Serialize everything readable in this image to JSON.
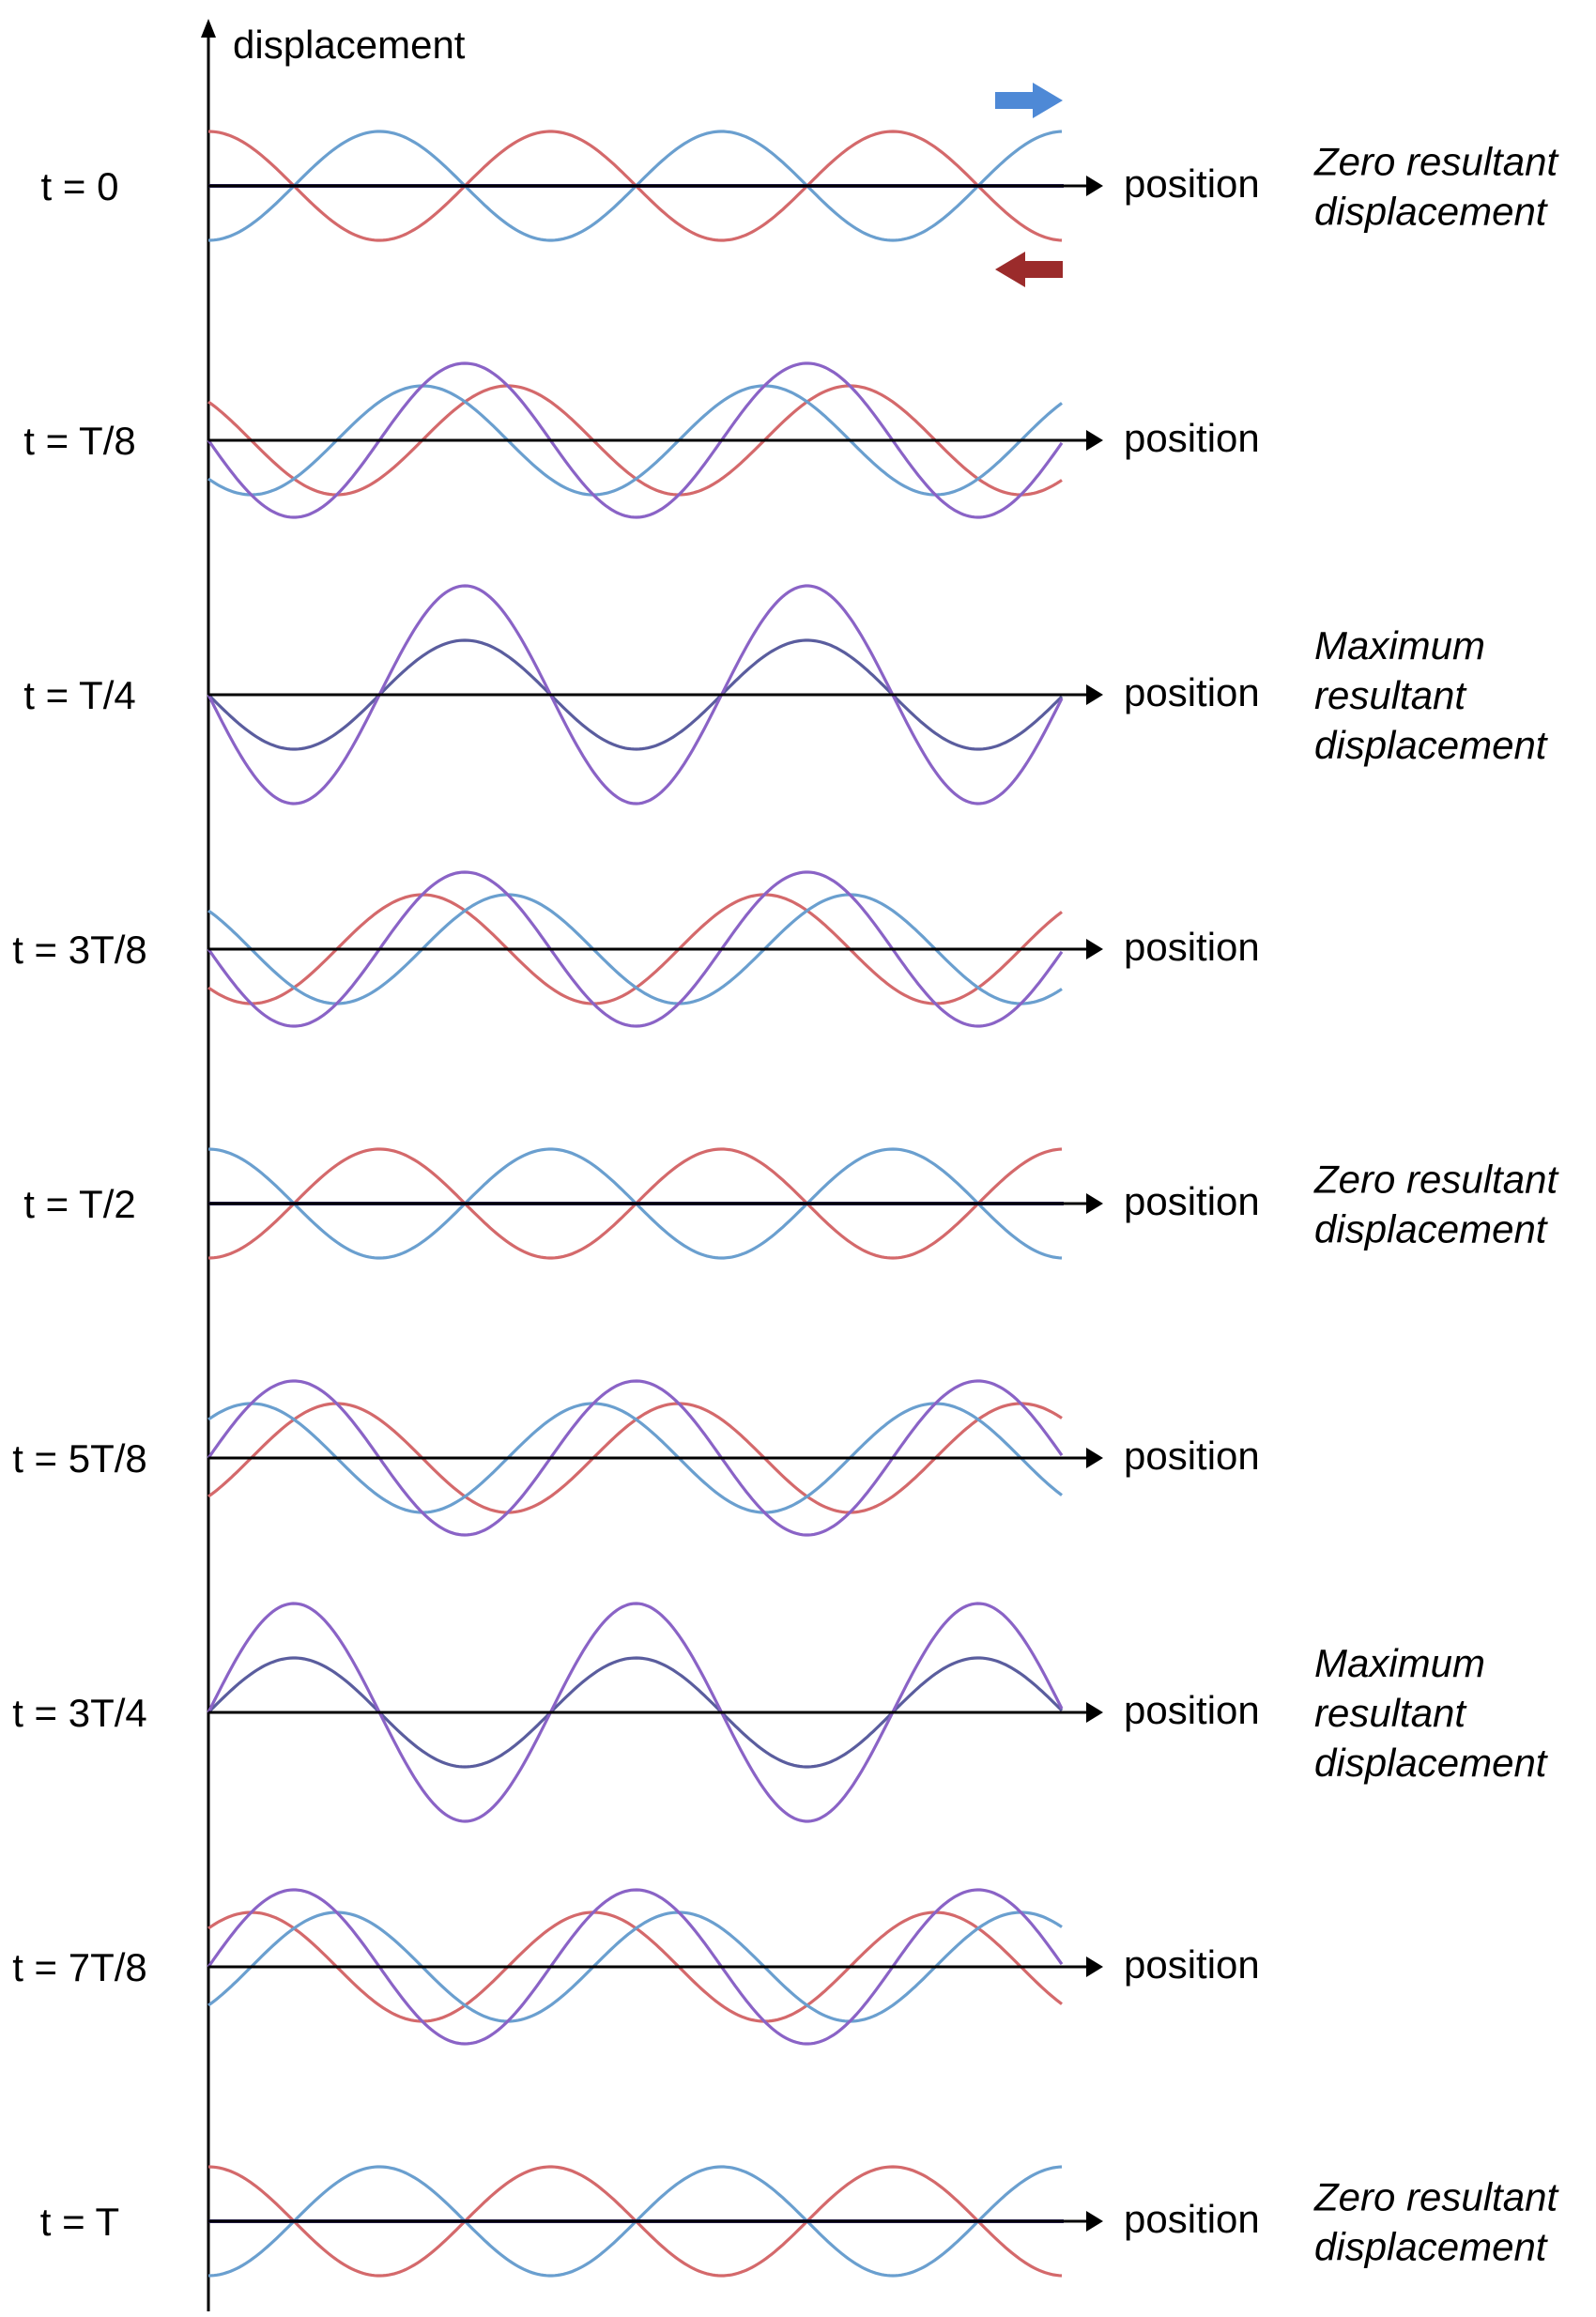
{
  "axis": {
    "ylabel": "displacement",
    "xlabel": "position"
  },
  "colors": {
    "rightward": "#6a9fcf",
    "leftward": "#d4696b",
    "resultant": "#8a63c6",
    "axis": "#000000",
    "right_arrow": "#4e89d6",
    "left_arrow": "#9b2b2b"
  },
  "legend": {
    "right_arrow_icon": "arrow-right-icon",
    "left_arrow_icon": "arrow-left-icon"
  },
  "frames": [
    {
      "time": "t = 0",
      "phase": 0,
      "note": [
        "Zero resultant",
        "displacement"
      ]
    },
    {
      "time": "t = T/8",
      "phase": 0.125,
      "note": []
    },
    {
      "time": "t = T/4",
      "phase": 0.25,
      "note": [
        "Maximum",
        "resultant",
        "displacement"
      ]
    },
    {
      "time": "t = 3T/8",
      "phase": 0.375,
      "note": []
    },
    {
      "time": "t = T/2",
      "phase": 0.5,
      "note": [
        "Zero resultant",
        "displacement"
      ]
    },
    {
      "time": "t = 5T/8",
      "phase": 0.625,
      "note": []
    },
    {
      "time": "t = 3T/4",
      "phase": 0.75,
      "note": [
        "Maximum",
        "resultant",
        "displacement"
      ]
    },
    {
      "time": "t = 7T/8",
      "phase": 0.875,
      "note": []
    },
    {
      "time": "t = T",
      "phase": 1,
      "note": [
        "Zero resultant",
        "displacement"
      ]
    }
  ],
  "wave": {
    "wavelengths_shown": 2.5,
    "amplitude_ratio_resultant": 2
  }
}
